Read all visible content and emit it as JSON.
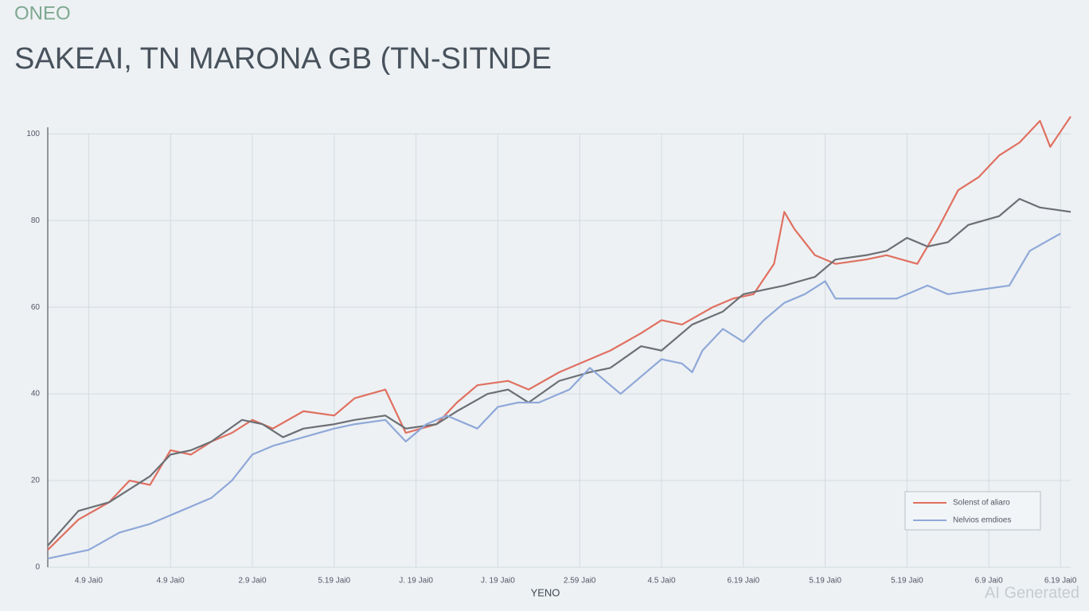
{
  "chart_data": {
    "type": "line",
    "logo": "ONEO",
    "title": "SAKEAI, TN MARONA GB (TN-SITNDE",
    "xlabel": "YENO",
    "watermark": "AI Generated",
    "xlim": [
      0,
      100
    ],
    "ylim": [
      0,
      105
    ],
    "yticks": [
      0,
      20,
      40,
      60,
      80,
      100
    ],
    "xticks": [
      {
        "value": 4,
        "label": "4.9 Jai0"
      },
      {
        "value": 12,
        "label": "4.9 Jai0"
      },
      {
        "value": 20,
        "label": "2.9 Jai0"
      },
      {
        "value": 28,
        "label": "5.19 Jai0"
      },
      {
        "value": 36,
        "label": "J. 19 Jai0"
      },
      {
        "value": 44,
        "label": "J. 19 Jai0"
      },
      {
        "value": 52,
        "label": "2.59 Jai0"
      },
      {
        "value": 60,
        "label": "4.5 Jai0"
      },
      {
        "value": 68,
        "label": "6.19 Jai0"
      },
      {
        "value": 76,
        "label": "5.19 Jai0"
      },
      {
        "value": 84,
        "label": "5.19 Jai0"
      },
      {
        "value": 92,
        "label": "6.9 Jai0"
      },
      {
        "value": 99,
        "label": "6.19 Jai0"
      }
    ],
    "grid": true,
    "legend": "bottom-right",
    "series": [
      {
        "name": "Solenst of aliaro",
        "color": "#e07060",
        "x": [
          0,
          3,
          6,
          8,
          10,
          12,
          14,
          16,
          18,
          20,
          22,
          25,
          28,
          30,
          33,
          35,
          38,
          40,
          42,
          45,
          47,
          50,
          53,
          55,
          58,
          60,
          62,
          65,
          67,
          69,
          71,
          72,
          73,
          75,
          77,
          80,
          82,
          85,
          87,
          89,
          91,
          93,
          95,
          97,
          98,
          100
        ],
        "values": [
          4,
          11,
          15,
          20,
          19,
          27,
          26,
          29,
          31,
          34,
          32,
          36,
          35,
          39,
          41,
          31,
          33,
          38,
          42,
          43,
          41,
          45,
          48,
          50,
          54,
          57,
          56,
          60,
          62,
          63,
          70,
          82,
          78,
          72,
          70,
          71,
          72,
          70,
          78,
          87,
          90,
          95,
          98,
          103,
          97,
          104
        ]
      },
      {
        "color": "#6c7075",
        "x": [
          0,
          3,
          6,
          8,
          10,
          12,
          14,
          16,
          19,
          21,
          23,
          25,
          28,
          30,
          33,
          35,
          38,
          40,
          43,
          45,
          47,
          50,
          53,
          55,
          58,
          60,
          63,
          66,
          68,
          70,
          72,
          75,
          77,
          80,
          82,
          84,
          86,
          88,
          90,
          93,
          95,
          97,
          100
        ],
        "values": [
          5,
          13,
          15,
          18,
          21,
          26,
          27,
          29,
          34,
          33,
          30,
          32,
          33,
          34,
          35,
          32,
          33,
          36,
          40,
          41,
          38,
          43,
          45,
          46,
          51,
          50,
          56,
          59,
          63,
          64,
          65,
          67,
          71,
          72,
          73,
          76,
          74,
          75,
          79,
          81,
          85,
          83,
          82
        ]
      },
      {
        "name": "Nelvios emdioes",
        "color": "#8fa8d8",
        "x": [
          0,
          4,
          7,
          10,
          13,
          16,
          18,
          20,
          22,
          25,
          28,
          30,
          33,
          35,
          37,
          39,
          42,
          44,
          46,
          48,
          51,
          53,
          56,
          58,
          60,
          62,
          63,
          64,
          66,
          68,
          70,
          72,
          74,
          76,
          77,
          80,
          83,
          86,
          88,
          91,
          94,
          96,
          99
        ],
        "values": [
          2,
          4,
          8,
          10,
          13,
          16,
          20,
          26,
          28,
          30,
          32,
          33,
          34,
          29,
          33,
          35,
          32,
          37,
          38,
          38,
          41,
          46,
          40,
          44,
          48,
          47,
          45,
          50,
          55,
          52,
          57,
          61,
          63,
          66,
          62,
          62,
          62,
          65,
          63,
          64,
          65,
          73,
          77
        ]
      }
    ]
  }
}
